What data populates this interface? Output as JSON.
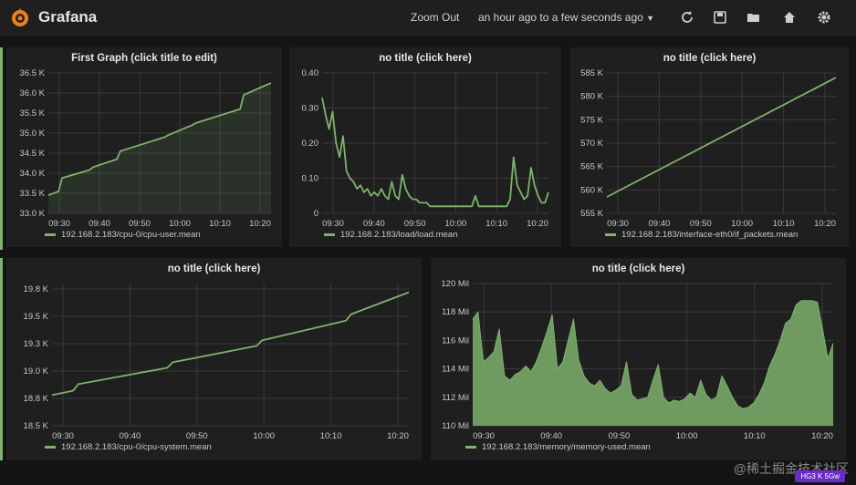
{
  "app": {
    "name": "Grafana",
    "zoom_out_label": "Zoom Out",
    "time_range_label": "an hour ago to a few seconds ago",
    "icons": [
      "refresh-icon",
      "save-icon",
      "folder-open-icon",
      "home-icon",
      "gear-icon"
    ]
  },
  "colors": {
    "accent": "#7eb26d",
    "panel_bg": "#1f1f1f",
    "page_bg": "#141414",
    "grid": "#3a3a3a",
    "text": "#d8d9da"
  },
  "watermark": "@稀土掘金技术社区",
  "badge": "HG3 K 5Gw",
  "chart_data": [
    {
      "type": "line",
      "title": "First Graph (click title to edit)",
      "legend": "192.168.2.183/cpu-0/cpu-user.mean",
      "fill": true,
      "x_ticks": [
        "09:30",
        "09:40",
        "09:50",
        "10:00",
        "10:10",
        "10:20"
      ],
      "xlim": [
        0,
        65
      ],
      "ylim": [
        33.0,
        36.5
      ],
      "y_ticks": [
        33.0,
        33.5,
        34.0,
        34.5,
        35.0,
        35.5,
        36.0,
        36.5
      ],
      "y_tick_labels": [
        "33.0 K",
        "33.5 K",
        "34.0 K",
        "34.5 K",
        "35.0 K",
        "35.5 K",
        "36.0 K",
        "36.5 K"
      ],
      "x": [
        0,
        3,
        4,
        12,
        13,
        20,
        21,
        34,
        35,
        42,
        43,
        56,
        57,
        65
      ],
      "y": [
        33.45,
        33.55,
        33.88,
        34.08,
        34.15,
        34.35,
        34.55,
        34.9,
        34.95,
        35.2,
        35.25,
        35.6,
        35.95,
        36.25
      ]
    },
    {
      "type": "line",
      "title": "no title (click here)",
      "legend": "192.168.2.183/load/load.mean",
      "fill": false,
      "x_ticks": [
        "09:30",
        "09:40",
        "09:50",
        "10:00",
        "10:10",
        "10:20"
      ],
      "xlim": [
        0,
        65
      ],
      "ylim": [
        0,
        0.4
      ],
      "y_ticks": [
        0,
        0.1,
        0.2,
        0.3,
        0.4
      ],
      "y_tick_labels": [
        "0",
        "0.10",
        "0.20",
        "0.30",
        "0.40"
      ],
      "x": [
        0,
        1,
        2,
        3,
        4,
        5,
        6,
        7,
        8,
        9,
        10,
        11,
        12,
        13,
        14,
        15,
        16,
        17,
        18,
        19,
        20,
        21,
        22,
        23,
        24,
        25,
        26,
        27,
        28,
        29,
        30,
        31,
        32,
        33,
        34,
        35,
        36,
        37,
        38,
        39,
        40,
        41,
        42,
        43,
        44,
        45,
        46,
        47,
        48,
        49,
        50,
        51,
        52,
        53,
        54,
        55,
        56,
        57,
        58,
        59,
        60,
        61,
        62,
        63,
        64,
        65
      ],
      "y": [
        0.33,
        0.28,
        0.24,
        0.29,
        0.2,
        0.16,
        0.22,
        0.12,
        0.1,
        0.09,
        0.07,
        0.08,
        0.06,
        0.07,
        0.05,
        0.06,
        0.05,
        0.07,
        0.05,
        0.04,
        0.09,
        0.05,
        0.04,
        0.11,
        0.07,
        0.05,
        0.04,
        0.04,
        0.03,
        0.03,
        0.03,
        0.02,
        0.02,
        0.02,
        0.02,
        0.02,
        0.02,
        0.02,
        0.02,
        0.02,
        0.02,
        0.02,
        0.02,
        0.02,
        0.05,
        0.02,
        0.02,
        0.02,
        0.02,
        0.02,
        0.02,
        0.02,
        0.02,
        0.02,
        0.04,
        0.16,
        0.08,
        0.06,
        0.04,
        0.05,
        0.13,
        0.08,
        0.05,
        0.03,
        0.03,
        0.06
      ]
    },
    {
      "type": "line",
      "title": "no title (click here)",
      "legend": "192.168.2.183/interface-eth0/if_packets.mean",
      "fill": false,
      "x_ticks": [
        "09:30",
        "09:40",
        "09:50",
        "10:00",
        "10:10",
        "10:20"
      ],
      "xlim": [
        0,
        65
      ],
      "ylim": [
        555,
        585
      ],
      "y_ticks": [
        555,
        560,
        565,
        570,
        575,
        580,
        585
      ],
      "y_tick_labels": [
        "555 K",
        "560 K",
        "565 K",
        "570 K",
        "575 K",
        "580 K",
        "585 K"
      ],
      "x": [
        0,
        65
      ],
      "y": [
        558.5,
        584
      ]
    },
    {
      "type": "line",
      "title": "no title (click here)",
      "legend": "192.168.2.183/cpu-0/cpu-system.mean",
      "fill": false,
      "x_ticks": [
        "09:30",
        "09:40",
        "09:50",
        "10:00",
        "10:10",
        "10:20"
      ],
      "xlim": [
        0,
        68
      ],
      "ylim": [
        18.5,
        19.8
      ],
      "y_ticks": [
        18.5,
        18.75,
        19.0,
        19.25,
        19.5,
        19.75
      ],
      "y_tick_labels": [
        "18.5 K",
        "18.8 K",
        "19.0 K",
        "19.3 K",
        "19.5 K",
        "19.8 K"
      ],
      "x": [
        0,
        4,
        5,
        22,
        23,
        39,
        40,
        56,
        57,
        68
      ],
      "y": [
        18.78,
        18.82,
        18.88,
        19.03,
        19.08,
        19.23,
        19.28,
        19.46,
        19.52,
        19.72
      ]
    },
    {
      "type": "area",
      "title": "no title (click here)",
      "legend": "192.168.2.183/memory/memory-used.mean",
      "fill": true,
      "x_ticks": [
        "09:30",
        "09:40",
        "09:50",
        "10:00",
        "10:10",
        "10:20"
      ],
      "xlim": [
        0,
        68
      ],
      "ylim": [
        110,
        120
      ],
      "y_ticks": [
        110,
        112,
        114,
        116,
        118,
        120
      ],
      "y_tick_labels": [
        "110 Mil",
        "112 Mil",
        "114 Mil",
        "116 Mil",
        "118 Mil",
        "120 Mil"
      ],
      "x": [
        0,
        1,
        2,
        3,
        4,
        5,
        6,
        7,
        8,
        9,
        10,
        11,
        12,
        13,
        14,
        15,
        16,
        17,
        18,
        19,
        20,
        21,
        22,
        23,
        24,
        25,
        26,
        27,
        28,
        29,
        30,
        31,
        32,
        33,
        34,
        35,
        36,
        37,
        38,
        39,
        40,
        41,
        42,
        43,
        44,
        45,
        46,
        47,
        48,
        49,
        50,
        51,
        52,
        53,
        54,
        55,
        56,
        57,
        58,
        59,
        60,
        61,
        62,
        63,
        64,
        65,
        66,
        67,
        68
      ],
      "y": [
        117.5,
        118.0,
        114.5,
        114.8,
        115.2,
        116.8,
        113.5,
        113.2,
        113.6,
        113.8,
        114.2,
        113.8,
        114.5,
        115.5,
        116.6,
        117.8,
        114.0,
        114.5,
        116.0,
        117.5,
        114.6,
        113.5,
        113.0,
        112.8,
        113.2,
        112.6,
        112.3,
        112.5,
        112.8,
        114.5,
        112.2,
        111.8,
        111.9,
        112.0,
        113.2,
        114.3,
        112.0,
        111.6,
        111.8,
        111.7,
        111.9,
        112.3,
        112.0,
        113.2,
        112.2,
        111.8,
        112.0,
        113.5,
        112.8,
        112.0,
        111.4,
        111.2,
        111.3,
        111.6,
        112.2,
        113.0,
        114.2,
        115.0,
        116.0,
        117.2,
        117.5,
        118.5,
        118.8,
        118.8,
        118.8,
        118.7,
        116.8,
        114.7,
        115.8
      ]
    }
  ]
}
